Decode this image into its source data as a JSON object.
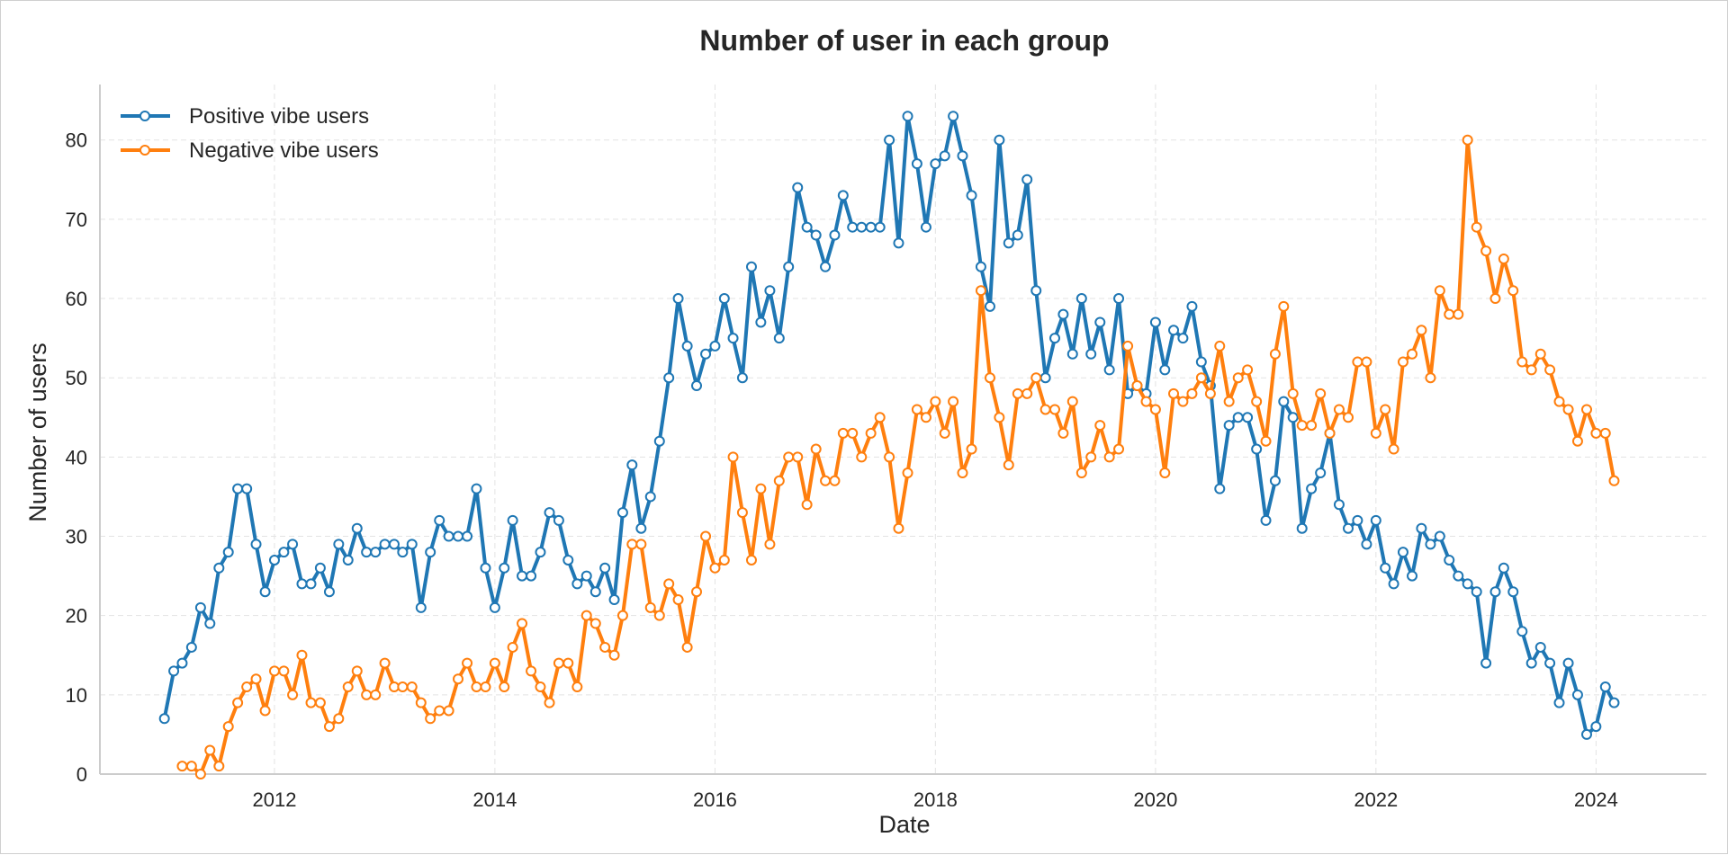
{
  "chart_data": {
    "type": "line",
    "title": "Number of user in each group",
    "xlabel": "Date",
    "ylabel": "Number of users",
    "xlim": [
      "2010-06-01",
      "2025-01-01"
    ],
    "ylim": [
      0,
      87
    ],
    "x_ticks": [
      "2012",
      "2014",
      "2016",
      "2018",
      "2020",
      "2022",
      "2024"
    ],
    "y_ticks": [
      0,
      10,
      20,
      30,
      40,
      50,
      60,
      70,
      80
    ],
    "grid": true,
    "legend_position": "top-left",
    "series": [
      {
        "name": "Positive vibe users",
        "color": "#1f77b4",
        "start": "2011-01",
        "values": [
          7,
          13,
          14,
          16,
          21,
          19,
          26,
          28,
          36,
          36,
          29,
          23,
          27,
          28,
          29,
          24,
          24,
          26,
          23,
          29,
          27,
          31,
          28,
          28,
          29,
          29,
          28,
          29,
          21,
          28,
          32,
          30,
          30,
          30,
          36,
          26,
          21,
          26,
          32,
          25,
          25,
          28,
          33,
          32,
          27,
          24,
          25,
          23,
          26,
          22,
          33,
          39,
          31,
          35,
          42,
          50,
          60,
          54,
          49,
          53,
          54,
          60,
          55,
          50,
          64,
          57,
          61,
          55,
          64,
          74,
          69,
          68,
          64,
          68,
          73,
          69,
          69,
          69,
          69,
          80,
          67,
          83,
          77,
          69,
          77,
          78,
          83,
          78,
          73,
          64,
          59,
          80,
          67,
          68,
          75,
          61,
          50,
          55,
          58,
          53,
          60,
          53,
          57,
          51,
          60,
          48,
          49,
          48,
          57,
          51,
          56,
          55,
          59,
          52,
          49,
          36,
          44,
          45,
          45,
          41,
          32,
          37,
          47,
          45,
          31,
          36,
          38,
          43,
          34,
          31,
          32,
          29,
          32,
          26,
          24,
          28,
          25,
          31,
          29,
          30,
          27,
          25,
          24,
          23,
          14,
          23,
          26,
          23,
          18,
          14,
          16,
          14,
          9,
          14,
          10,
          5,
          6,
          11,
          9
        ]
      },
      {
        "name": "Negative vibe users",
        "color": "#ff7f0e",
        "start": "2011-03",
        "values": [
          1,
          1,
          0,
          3,
          1,
          6,
          9,
          11,
          12,
          8,
          13,
          13,
          10,
          15,
          9,
          9,
          6,
          7,
          11,
          13,
          10,
          10,
          14,
          11,
          11,
          11,
          9,
          7,
          8,
          8,
          12,
          14,
          11,
          11,
          14,
          11,
          16,
          19,
          13,
          11,
          9,
          14,
          14,
          11,
          20,
          19,
          16,
          15,
          20,
          29,
          29,
          21,
          20,
          24,
          22,
          16,
          23,
          30,
          26,
          27,
          40,
          33,
          27,
          36,
          29,
          37,
          40,
          40,
          34,
          41,
          37,
          37,
          43,
          43,
          40,
          43,
          45,
          40,
          31,
          38,
          46,
          45,
          47,
          43,
          47,
          38,
          41,
          61,
          50,
          45,
          39,
          48,
          48,
          50,
          46,
          46,
          43,
          47,
          38,
          40,
          44,
          40,
          41,
          54,
          49,
          47,
          46,
          38,
          48,
          47,
          48,
          50,
          48,
          54,
          47,
          50,
          51,
          47,
          42,
          53,
          59,
          48,
          44,
          44,
          48,
          43,
          46,
          45,
          52,
          52,
          43,
          46,
          41,
          52,
          53,
          56,
          50,
          61,
          58,
          58,
          80,
          69,
          66,
          60,
          65,
          61,
          52,
          51,
          53,
          51,
          47,
          46,
          42,
          46,
          43,
          43,
          37
        ]
      }
    ]
  }
}
